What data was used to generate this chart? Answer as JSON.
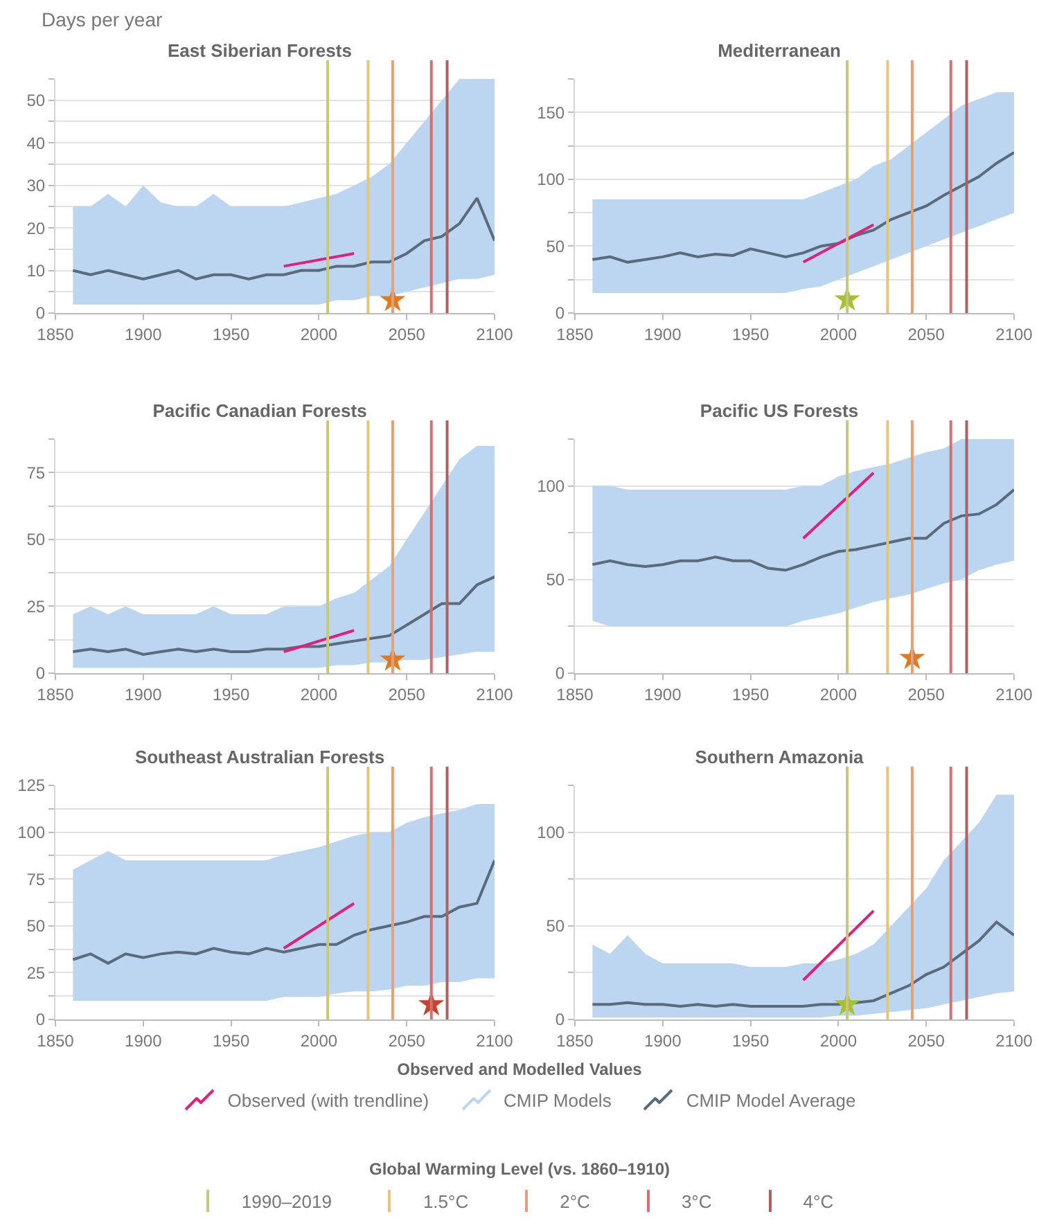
{
  "chart_data": [
    {
      "type": "line",
      "title": "East Siberian Forests",
      "ylabel": "Days per year",
      "legend": "bottom",
      "legend_title": "Observed and Modelled Values",
      "annotations": [
        "Global Warming Level (vs. 1860–1910)"
      ],
      "grid": "y",
      "x": [
        1860,
        1870,
        1880,
        1890,
        1900,
        1910,
        1920,
        1930,
        1940,
        1950,
        1960,
        1970,
        1980,
        1990,
        2000,
        2010,
        2020,
        2030,
        2040,
        2050,
        2060,
        2070,
        2080,
        2090,
        2100
      ],
      "xlim": [
        1850,
        2100
      ],
      "xticks": [
        1850,
        1900,
        1950,
        2000,
        2050,
        2100
      ],
      "ylim": [
        0,
        55
      ],
      "yticks": [
        0,
        {
          "value": 5,
          "label": null
        },
        10,
        {
          "value": 15,
          "label": null
        },
        20,
        {
          "value": 25,
          "label": null
        },
        30,
        {
          "value": 35,
          "label": null
        },
        40,
        {
          "value": 45,
          "label": null
        },
        50,
        {
          "value": 55,
          "label": null
        }
      ],
      "series": [
        {
          "name": "CMIP Models",
          "color": "#bcd6f2",
          "values": [
            null,
            null,
            null,
            null,
            null,
            null,
            null,
            null,
            null,
            null,
            null,
            null,
            null,
            null,
            null,
            null,
            null,
            null,
            null,
            null,
            null,
            null,
            null,
            null,
            null
          ],
          "lower": [
            2,
            2,
            2,
            2,
            2,
            2,
            2,
            2,
            2,
            2,
            2,
            2,
            2,
            2,
            2,
            3,
            3,
            4,
            4,
            5,
            6,
            7,
            8,
            8,
            9
          ],
          "upper": [
            25,
            25,
            28,
            25,
            30,
            26,
            25,
            25,
            28,
            25,
            25,
            25,
            25,
            26,
            27,
            28,
            30,
            32,
            35,
            40,
            45,
            50,
            55,
            55,
            55
          ]
        },
        {
          "name": "CMIP Model Average",
          "color": "#5b6b7b",
          "values": [
            10,
            9,
            10,
            9,
            8,
            9,
            10,
            8,
            9,
            9,
            8,
            9,
            9,
            10,
            10,
            11,
            11,
            12,
            12,
            14,
            17,
            18,
            21,
            27,
            17
          ]
        },
        {
          "name": "Observed (with trendline)",
          "color": "#e0207a",
          "x": [
            1980,
            2020
          ],
          "values": [
            11,
            14
          ]
        },
        {
          "type": "scatter",
          "marker": "star",
          "color": "#e07b24",
          "x": [
            2042
          ],
          "values": [
            3
          ]
        }
      ],
      "ref_lines": [
        {
          "axis": "x",
          "value": 2005,
          "label": "1990–2019",
          "color": "#c9c77e"
        },
        {
          "axis": "x",
          "value": 2028,
          "label": "1.5°C",
          "color": "#e6c47a"
        },
        {
          "axis": "x",
          "value": 2042,
          "label": "2°C",
          "color": "#e0a27e"
        },
        {
          "axis": "x",
          "value": 2064,
          "label": "3°C",
          "color": "#d07272"
        },
        {
          "axis": "x",
          "value": 2073,
          "label": "4°C",
          "color": "#b0605e"
        }
      ]
    },
    {
      "type": "line",
      "title": "Mediterranean",
      "grid": "y",
      "x": [
        1860,
        1870,
        1880,
        1890,
        1900,
        1910,
        1920,
        1930,
        1940,
        1950,
        1960,
        1970,
        1980,
        1990,
        2000,
        2010,
        2020,
        2030,
        2040,
        2050,
        2060,
        2070,
        2080,
        2090,
        2100
      ],
      "xlim": [
        1850,
        2100
      ],
      "xticks": [
        1850,
        1900,
        1950,
        2000,
        2050,
        2100
      ],
      "ylim": [
        0,
        175
      ],
      "yticks": [
        0,
        {
          "value": 25,
          "label": null
        },
        50,
        {
          "value": 75,
          "label": null
        },
        100,
        {
          "value": 125,
          "label": null
        },
        150,
        {
          "value": 175,
          "label": null
        }
      ],
      "series": [
        {
          "color": "#bcd6f2",
          "values": [
            null,
            null,
            null,
            null,
            null,
            null,
            null,
            null,
            null,
            null,
            null,
            null,
            null,
            null,
            null,
            null,
            null,
            null,
            null,
            null,
            null,
            null,
            null,
            null,
            null
          ],
          "lower": [
            15,
            15,
            15,
            15,
            15,
            15,
            15,
            15,
            15,
            15,
            15,
            15,
            18,
            20,
            25,
            30,
            35,
            40,
            45,
            50,
            55,
            60,
            65,
            70,
            75
          ],
          "upper": [
            85,
            85,
            85,
            85,
            85,
            85,
            85,
            85,
            85,
            85,
            85,
            85,
            85,
            90,
            95,
            100,
            110,
            115,
            125,
            135,
            145,
            155,
            160,
            165,
            165
          ]
        },
        {
          "color": "#5b6b7b",
          "values": [
            40,
            42,
            38,
            40,
            42,
            45,
            42,
            44,
            43,
            48,
            45,
            42,
            45,
            50,
            52,
            58,
            62,
            70,
            75,
            80,
            88,
            95,
            102,
            112,
            120
          ]
        },
        {
          "color": "#e0207a",
          "x": [
            1980,
            2020
          ],
          "values": [
            38,
            66
          ]
        },
        {
          "type": "scatter",
          "marker": "star",
          "color": "#a8c030",
          "x": [
            2005
          ],
          "values": [
            10
          ]
        }
      ],
      "ref_lines": [
        {
          "axis": "x",
          "value": 2005,
          "color": "#c9c77e"
        },
        {
          "axis": "x",
          "value": 2028,
          "color": "#e6c47a"
        },
        {
          "axis": "x",
          "value": 2042,
          "color": "#e0a27e"
        },
        {
          "axis": "x",
          "value": 2064,
          "color": "#d07272"
        },
        {
          "axis": "x",
          "value": 2073,
          "color": "#b0605e"
        }
      ]
    },
    {
      "type": "line",
      "title": "Pacific Canadian Forests",
      "grid": "y",
      "x": [
        1860,
        1870,
        1880,
        1890,
        1900,
        1910,
        1920,
        1930,
        1940,
        1950,
        1960,
        1970,
        1980,
        1990,
        2000,
        2010,
        2020,
        2030,
        2040,
        2050,
        2060,
        2070,
        2080,
        2090,
        2100
      ],
      "xlim": [
        1850,
        2100
      ],
      "xticks": [
        1850,
        1900,
        1950,
        2000,
        2050,
        2100
      ],
      "ylim": [
        0,
        87.5
      ],
      "yticks": [
        0,
        {
          "value": 12.5,
          "label": null
        },
        25,
        {
          "value": 37.5,
          "label": null
        },
        50,
        {
          "value": 62.5,
          "label": null
        },
        75,
        {
          "value": 87.5,
          "label": null
        }
      ],
      "series": [
        {
          "color": "#bcd6f2",
          "values": [
            null,
            null,
            null,
            null,
            null,
            null,
            null,
            null,
            null,
            null,
            null,
            null,
            null,
            null,
            null,
            null,
            null,
            null,
            null,
            null,
            null,
            null,
            null,
            null,
            null
          ],
          "lower": [
            2,
            2,
            2,
            2,
            2,
            2,
            2,
            2,
            2,
            2,
            2,
            2,
            2,
            2,
            2,
            3,
            3,
            4,
            4,
            5,
            5,
            6,
            7,
            8,
            8
          ],
          "upper": [
            22,
            25,
            22,
            25,
            22,
            22,
            22,
            22,
            25,
            22,
            22,
            22,
            25,
            25,
            25,
            28,
            30,
            35,
            40,
            50,
            60,
            70,
            80,
            85,
            85
          ]
        },
        {
          "color": "#5b6b7b",
          "values": [
            8,
            9,
            8,
            9,
            7,
            8,
            9,
            8,
            9,
            8,
            8,
            9,
            9,
            10,
            10,
            11,
            12,
            13,
            14,
            18,
            22,
            26,
            26,
            33,
            36
          ]
        },
        {
          "color": "#e0207a",
          "x": [
            1980,
            2020
          ],
          "values": [
            8,
            16
          ]
        },
        {
          "type": "scatter",
          "marker": "star",
          "color": "#e07b24",
          "x": [
            2042
          ],
          "values": [
            5
          ]
        }
      ],
      "ref_lines": [
        {
          "axis": "x",
          "value": 2005,
          "color": "#c9c77e"
        },
        {
          "axis": "x",
          "value": 2028,
          "color": "#e6c47a"
        },
        {
          "axis": "x",
          "value": 2042,
          "color": "#e0a27e"
        },
        {
          "axis": "x",
          "value": 2064,
          "color": "#d07272"
        },
        {
          "axis": "x",
          "value": 2073,
          "color": "#b0605e"
        }
      ]
    },
    {
      "type": "line",
      "title": "Pacific US Forests",
      "grid": "y",
      "x": [
        1860,
        1870,
        1880,
        1890,
        1900,
        1910,
        1920,
        1930,
        1940,
        1950,
        1960,
        1970,
        1980,
        1990,
        2000,
        2010,
        2020,
        2030,
        2040,
        2050,
        2060,
        2070,
        2080,
        2090,
        2100
      ],
      "xlim": [
        1850,
        2100
      ],
      "xticks": [
        1850,
        1900,
        1950,
        2000,
        2050,
        2100
      ],
      "ylim": [
        0,
        125
      ],
      "yticks": [
        0,
        {
          "value": 25,
          "label": null
        },
        50,
        {
          "value": 75,
          "label": null
        },
        100,
        {
          "value": 125,
          "label": null
        }
      ],
      "series": [
        {
          "color": "#bcd6f2",
          "values": [
            null,
            null,
            null,
            null,
            null,
            null,
            null,
            null,
            null,
            null,
            null,
            null,
            null,
            null,
            null,
            null,
            null,
            null,
            null,
            null,
            null,
            null,
            null,
            null,
            null
          ],
          "lower": [
            28,
            25,
            25,
            25,
            25,
            25,
            25,
            25,
            25,
            25,
            25,
            25,
            28,
            30,
            32,
            35,
            38,
            40,
            42,
            45,
            48,
            50,
            55,
            58,
            60
          ],
          "upper": [
            100,
            100,
            98,
            98,
            98,
            98,
            98,
            98,
            98,
            98,
            98,
            98,
            100,
            100,
            105,
            108,
            110,
            112,
            115,
            118,
            120,
            125,
            125,
            125,
            125
          ]
        },
        {
          "color": "#5b6b7b",
          "values": [
            58,
            60,
            58,
            57,
            58,
            60,
            60,
            62,
            60,
            60,
            56,
            55,
            58,
            62,
            65,
            66,
            68,
            70,
            72,
            72,
            80,
            84,
            85,
            90,
            98
          ]
        },
        {
          "color": "#e0207a",
          "x": [
            1980,
            2020
          ],
          "values": [
            72,
            107
          ]
        },
        {
          "type": "scatter",
          "marker": "star",
          "color": "#e07b24",
          "x": [
            2042
          ],
          "values": [
            8
          ]
        }
      ],
      "ref_lines": [
        {
          "axis": "x",
          "value": 2005,
          "color": "#c9c77e"
        },
        {
          "axis": "x",
          "value": 2028,
          "color": "#e6c47a"
        },
        {
          "axis": "x",
          "value": 2042,
          "color": "#e0a27e"
        },
        {
          "axis": "x",
          "value": 2064,
          "color": "#d07272"
        },
        {
          "axis": "x",
          "value": 2073,
          "color": "#b0605e"
        }
      ]
    },
    {
      "type": "line",
      "title": "Southeast Australian Forests",
      "grid": "y",
      "x": [
        1860,
        1870,
        1880,
        1890,
        1900,
        1910,
        1920,
        1930,
        1940,
        1950,
        1960,
        1970,
        1980,
        1990,
        2000,
        2010,
        2020,
        2030,
        2040,
        2050,
        2060,
        2070,
        2080,
        2090,
        2100
      ],
      "xlim": [
        1850,
        2100
      ],
      "xticks": [
        1850,
        1900,
        1950,
        2000,
        2050,
        2100
      ],
      "ylim": [
        0,
        125
      ],
      "yticks": [
        0,
        {
          "value": 12.5,
          "label": null
        },
        25,
        {
          "value": 37.5,
          "label": null
        },
        50,
        {
          "value": 62.5,
          "label": null
        },
        75,
        {
          "value": 87.5,
          "label": null
        },
        100,
        {
          "value": 112.5,
          "label": null
        },
        125
      ],
      "series": [
        {
          "color": "#bcd6f2",
          "values": [
            null,
            null,
            null,
            null,
            null,
            null,
            null,
            null,
            null,
            null,
            null,
            null,
            null,
            null,
            null,
            null,
            null,
            null,
            null,
            null,
            null,
            null,
            null,
            null,
            null
          ],
          "lower": [
            10,
            10,
            10,
            10,
            10,
            10,
            10,
            10,
            10,
            10,
            10,
            10,
            12,
            12,
            12,
            14,
            15,
            15,
            16,
            18,
            18,
            20,
            20,
            22,
            22
          ],
          "upper": [
            80,
            85,
            90,
            85,
            85,
            85,
            85,
            85,
            85,
            85,
            85,
            85,
            88,
            90,
            92,
            95,
            98,
            100,
            100,
            105,
            108,
            110,
            112,
            115,
            115
          ]
        },
        {
          "color": "#5b6b7b",
          "values": [
            32,
            35,
            30,
            35,
            33,
            35,
            36,
            35,
            38,
            36,
            35,
            38,
            36,
            38,
            40,
            40,
            45,
            48,
            50,
            52,
            55,
            55,
            60,
            62,
            85
          ]
        },
        {
          "color": "#e0207a",
          "x": [
            1980,
            2020
          ],
          "values": [
            38,
            62
          ]
        },
        {
          "type": "scatter",
          "marker": "star",
          "color": "#c8412c",
          "x": [
            2064
          ],
          "values": [
            8
          ]
        }
      ],
      "ref_lines": [
        {
          "axis": "x",
          "value": 2005,
          "color": "#c9c77e"
        },
        {
          "axis": "x",
          "value": 2028,
          "color": "#e6c47a"
        },
        {
          "axis": "x",
          "value": 2042,
          "color": "#e0a27e"
        },
        {
          "axis": "x",
          "value": 2064,
          "color": "#d07272"
        },
        {
          "axis": "x",
          "value": 2073,
          "color": "#b0605e"
        }
      ]
    },
    {
      "type": "line",
      "title": "Southern Amazonia",
      "grid": "y",
      "x": [
        1860,
        1870,
        1880,
        1890,
        1900,
        1910,
        1920,
        1930,
        1940,
        1950,
        1960,
        1970,
        1980,
        1990,
        2000,
        2010,
        2020,
        2030,
        2040,
        2050,
        2060,
        2070,
        2080,
        2090,
        2100
      ],
      "xlim": [
        1850,
        2100
      ],
      "xticks": [
        1850,
        1900,
        1950,
        2000,
        2050,
        2100
      ],
      "ylim": [
        0,
        125
      ],
      "yticks": [
        0,
        {
          "value": 25,
          "label": null
        },
        50,
        {
          "value": 75,
          "label": null
        },
        100,
        {
          "value": 125,
          "label": null
        }
      ],
      "series": [
        {
          "color": "#bcd6f2",
          "values": [
            null,
            null,
            null,
            null,
            null,
            null,
            null,
            null,
            null,
            null,
            null,
            null,
            null,
            null,
            null,
            null,
            null,
            null,
            null,
            null,
            null,
            null,
            null,
            null,
            null
          ],
          "lower": [
            1,
            1,
            1,
            1,
            1,
            1,
            1,
            1,
            1,
            1,
            1,
            1,
            1,
            1,
            2,
            2,
            3,
            4,
            5,
            6,
            8,
            10,
            12,
            14,
            15
          ],
          "upper": [
            40,
            35,
            45,
            35,
            30,
            30,
            30,
            30,
            30,
            28,
            28,
            28,
            30,
            30,
            32,
            35,
            40,
            50,
            60,
            70,
            85,
            95,
            105,
            120,
            120
          ]
        },
        {
          "color": "#5b6b7b",
          "values": [
            8,
            8,
            9,
            8,
            8,
            7,
            8,
            7,
            8,
            7,
            7,
            7,
            7,
            8,
            8,
            9,
            10,
            14,
            18,
            24,
            28,
            35,
            42,
            52,
            45
          ]
        },
        {
          "color": "#e0207a",
          "x": [
            1980,
            2020
          ],
          "values": [
            21,
            58
          ]
        },
        {
          "type": "scatter",
          "marker": "star",
          "color": "#a8c030",
          "x": [
            2005
          ],
          "values": [
            8
          ]
        }
      ],
      "ref_lines": [
        {
          "axis": "x",
          "value": 2005,
          "color": "#c9c77e"
        },
        {
          "axis": "x",
          "value": 2028,
          "color": "#e6c47a"
        },
        {
          "axis": "x",
          "value": 2042,
          "color": "#e0a27e"
        },
        {
          "axis": "x",
          "value": 2064,
          "color": "#d07272"
        },
        {
          "axis": "x",
          "value": 2073,
          "color": "#b0605e"
        }
      ]
    }
  ]
}
